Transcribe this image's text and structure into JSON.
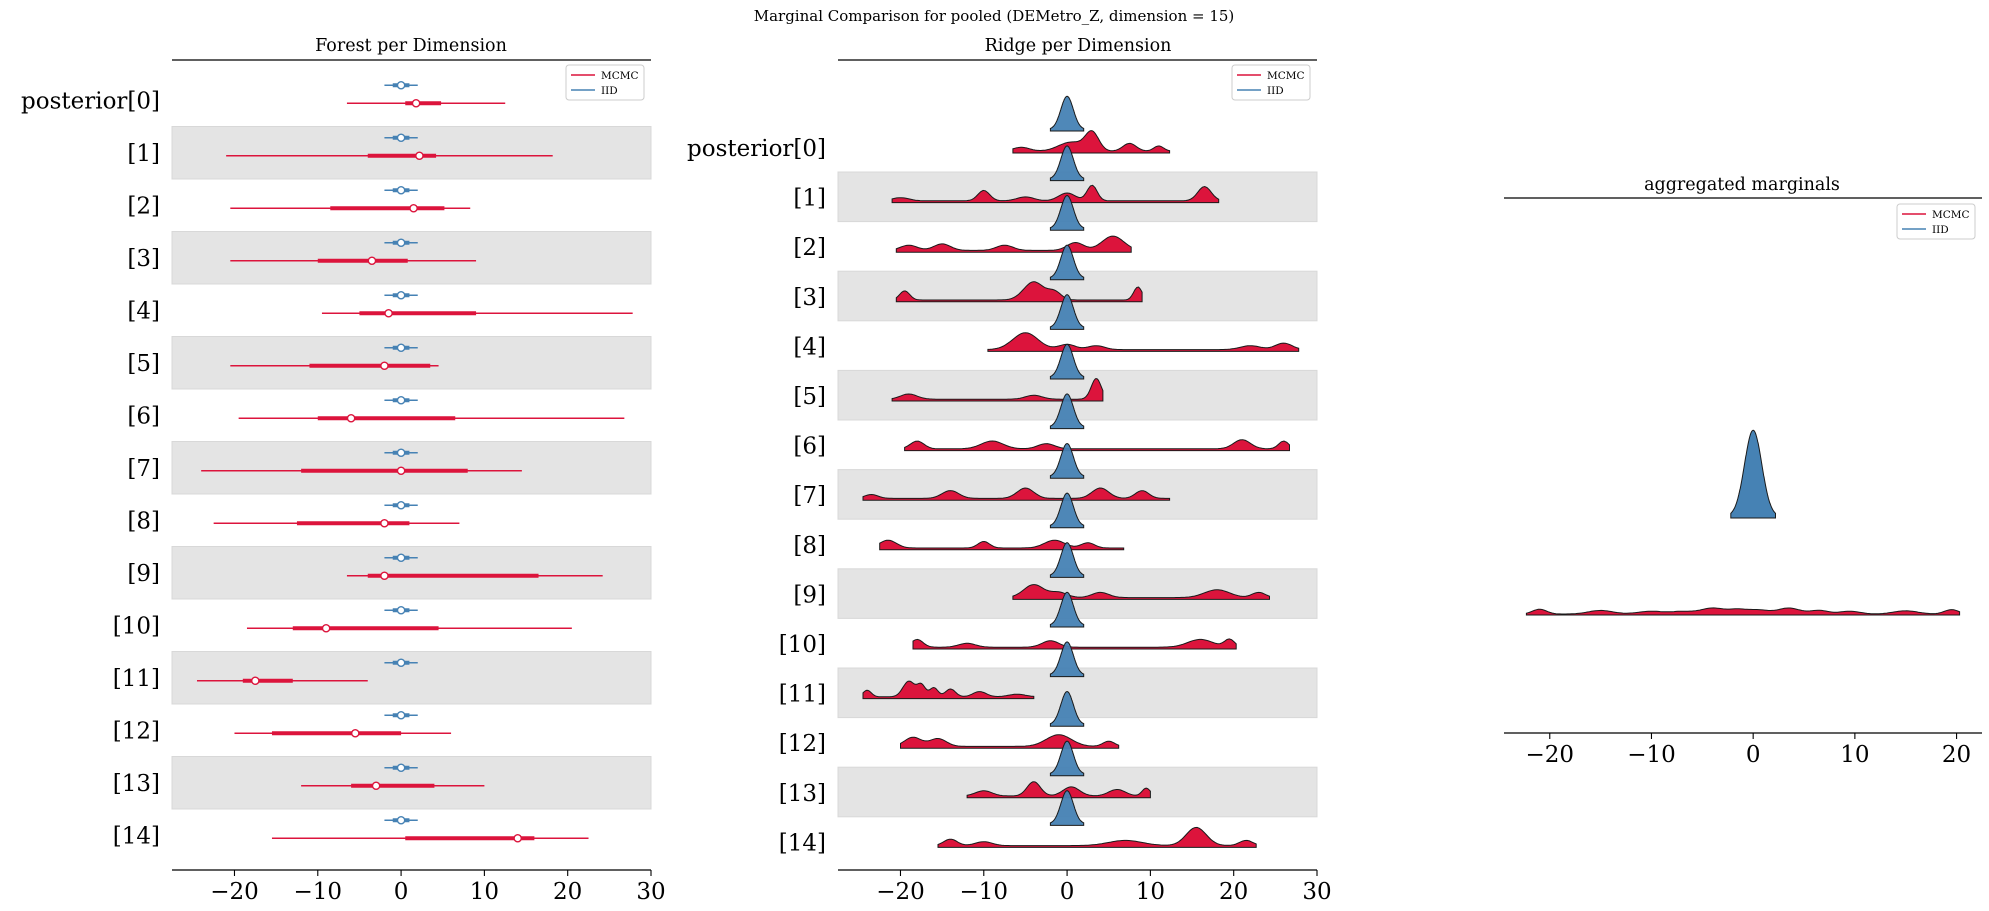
{
  "figure": {
    "suptitle": "Marginal Comparison for pooled (DEMetro_Z, dimension = 15)"
  },
  "colors": {
    "mcmc": "#dc143c",
    "iid": "#4682b4",
    "band": "#e4e4e4",
    "axis": "#000000"
  },
  "legend": {
    "mcmc_label": "MCMC",
    "iid_label": "IID"
  },
  "chart_data": [
    {
      "type": "forest",
      "title": "Forest per Dimension",
      "xlim": [
        -27.5,
        30
      ],
      "xticks": [
        -20,
        -10,
        0,
        10,
        20,
        30
      ],
      "xtick_labels": [
        "−20",
        "−10",
        "0",
        "10",
        "20",
        "30"
      ],
      "labels": [
        "posterior[0]",
        "[1]",
        "[2]",
        "[3]",
        "[4]",
        "[5]",
        "[6]",
        "[7]",
        "[8]",
        "[9]",
        "[10]",
        "[11]",
        "[12]",
        "[13]",
        "[14]"
      ],
      "iid": {
        "median": 0,
        "hdi94": [
          -2,
          2
        ],
        "iqr": [
          -1,
          1
        ]
      },
      "mcmc": [
        {
          "lo": -6.5,
          "q1": 0.5,
          "median": 1.8,
          "q3": 4.8,
          "hi": 12.5
        },
        {
          "lo": -21,
          "q1": -4,
          "median": 2.2,
          "q3": 4.2,
          "hi": 18.2
        },
        {
          "lo": -20.5,
          "q1": -8.5,
          "median": 1.5,
          "q3": 5.2,
          "hi": 8.3
        },
        {
          "lo": -20.5,
          "q1": -10,
          "median": -3.5,
          "q3": 0.8,
          "hi": 9
        },
        {
          "lo": -9.5,
          "q1": -5,
          "median": -1.5,
          "q3": 9,
          "hi": 27.8
        },
        {
          "lo": -20.5,
          "q1": -11,
          "median": -2,
          "q3": 3.5,
          "hi": 4.5
        },
        {
          "lo": -19.5,
          "q1": -10,
          "median": -6,
          "q3": 6.5,
          "hi": 26.8
        },
        {
          "lo": -24,
          "q1": -12,
          "median": 0,
          "q3": 8,
          "hi": 14.5
        },
        {
          "lo": -22.5,
          "q1": -12.5,
          "median": -2,
          "q3": 1,
          "hi": 7
        },
        {
          "lo": -6.5,
          "q1": -4,
          "median": -2,
          "q3": 16.5,
          "hi": 24.2
        },
        {
          "lo": -18.5,
          "q1": -13,
          "median": -9,
          "q3": 4.5,
          "hi": 20.5
        },
        {
          "lo": -24.5,
          "q1": -19,
          "median": -17.5,
          "q3": -13,
          "hi": -4
        },
        {
          "lo": -20,
          "q1": -15.5,
          "median": -5.5,
          "q3": 0,
          "hi": 6
        },
        {
          "lo": -12,
          "q1": -6,
          "median": -3,
          "q3": 4,
          "hi": 10
        },
        {
          "lo": -15.5,
          "q1": 0.5,
          "median": 14,
          "q3": 16,
          "hi": 22.5
        }
      ]
    },
    {
      "type": "ridge",
      "title": "Ridge per Dimension",
      "xlim": [
        -27.5,
        30
      ],
      "xticks": [
        -20,
        -10,
        0,
        10,
        20,
        30
      ],
      "xtick_labels": [
        "−20",
        "−10",
        "0",
        "10",
        "20",
        "30"
      ],
      "labels": [
        "posterior[0]",
        "[1]",
        "[2]",
        "[3]",
        "[4]",
        "[5]",
        "[6]",
        "[7]",
        "[8]",
        "[9]",
        "[10]",
        "[11]",
        "[12]",
        "[13]",
        "[14]"
      ],
      "iid_range": [
        -2,
        2
      ],
      "mcmc_densities": [
        {
          "lo": -6.5,
          "hi": 12.3,
          "peaks": [
            [
              -5.5,
              0.15,
              1
            ],
            [
              0.5,
              0.35,
              1.5
            ],
            [
              3,
              0.7,
              0.8
            ],
            [
              7.5,
              0.3,
              0.8
            ],
            [
              11,
              0.2,
              0.6
            ]
          ]
        },
        {
          "lo": -21,
          "hi": 18.2,
          "peaks": [
            [
              -20,
              0.12,
              1
            ],
            [
              -10,
              0.4,
              0.7
            ],
            [
              -5,
              0.15,
              1
            ],
            [
              0,
              0.3,
              1
            ],
            [
              3,
              0.6,
              0.6
            ],
            [
              16.5,
              0.55,
              0.8
            ]
          ]
        },
        {
          "lo": -20.5,
          "hi": 7.7,
          "peaks": [
            [
              -19,
              0.2,
              1
            ],
            [
              -15,
              0.25,
              1
            ],
            [
              -7.5,
              0.2,
              1
            ],
            [
              1,
              0.3,
              1
            ],
            [
              5.5,
              0.55,
              1.3
            ]
          ]
        },
        {
          "lo": -20.5,
          "hi": 9,
          "peaks": [
            [
              -19.5,
              0.35,
              0.6
            ],
            [
              -4,
              0.7,
              1.2
            ],
            [
              -1.5,
              0.3,
              0.8
            ],
            [
              8.5,
              0.5,
              0.5
            ]
          ]
        },
        {
          "lo": -9.5,
          "hi": 27.8,
          "peaks": [
            [
              -5,
              0.65,
              1.5
            ],
            [
              0,
              0.2,
              1
            ],
            [
              3.5,
              0.15,
              1
            ],
            [
              22,
              0.15,
              1.2
            ],
            [
              26,
              0.25,
              1
            ]
          ]
        },
        {
          "lo": -21,
          "hi": 4.3,
          "peaks": [
            [
              -19,
              0.2,
              1
            ],
            [
              -4,
              0.15,
              1
            ],
            [
              3.5,
              0.8,
              0.6
            ]
          ]
        },
        {
          "lo": -19.5,
          "hi": 26.7,
          "peaks": [
            [
              -18,
              0.3,
              0.8
            ],
            [
              -9,
              0.3,
              1.3
            ],
            [
              -2.5,
              0.2,
              1
            ],
            [
              21,
              0.35,
              1
            ],
            [
              26,
              0.3,
              0.6
            ]
          ]
        },
        {
          "lo": -24.5,
          "hi": 12.3,
          "peaks": [
            [
              -23.5,
              0.15,
              0.8
            ],
            [
              -14,
              0.3,
              1
            ],
            [
              -5,
              0.4,
              1
            ],
            [
              4,
              0.4,
              1
            ],
            [
              9,
              0.3,
              0.8
            ]
          ]
        },
        {
          "lo": -22.5,
          "hi": 6.8,
          "peaks": [
            [
              -21.5,
              0.3,
              1
            ],
            [
              -10,
              0.25,
              0.7
            ],
            [
              -1.5,
              0.3,
              1.2
            ],
            [
              2.5,
              0.2,
              0.8
            ]
          ]
        },
        {
          "lo": -6.5,
          "hi": 24.3,
          "peaks": [
            [
              -4,
              0.5,
              1.2
            ],
            [
              -1,
              0.2,
              1
            ],
            [
              4,
              0.2,
              1
            ],
            [
              18,
              0.3,
              1.5
            ],
            [
              23,
              0.2,
              0.8
            ]
          ]
        },
        {
          "lo": -18.5,
          "hi": 20.3,
          "peaks": [
            [
              -18,
              0.3,
              0.7
            ],
            [
              -12,
              0.15,
              1
            ],
            [
              -2,
              0.25,
              1
            ],
            [
              16,
              0.3,
              1.5
            ],
            [
              19.5,
              0.3,
              0.6
            ]
          ]
        },
        {
          "lo": -24.5,
          "hi": -4,
          "peaks": [
            [
              -24,
              0.25,
              0.5
            ],
            [
              -19,
              0.6,
              0.7
            ],
            [
              -17.5,
              0.45,
              0.5
            ],
            [
              -16,
              0.35,
              0.5
            ],
            [
              -14,
              0.3,
              0.6
            ],
            [
              -10.5,
              0.2,
              0.8
            ],
            [
              -6,
              0.1,
              1
            ]
          ]
        },
        {
          "lo": -20,
          "hi": 6.2,
          "peaks": [
            [
              -18.5,
              0.35,
              1
            ],
            [
              -15.5,
              0.3,
              1
            ],
            [
              -1,
              0.45,
              1.5
            ],
            [
              5,
              0.2,
              0.7
            ]
          ]
        },
        {
          "lo": -12,
          "hi": 10,
          "peaks": [
            [
              -10,
              0.2,
              1
            ],
            [
              -4,
              0.55,
              0.8
            ],
            [
              0.5,
              0.35,
              1
            ],
            [
              6,
              0.25,
              1
            ],
            [
              9.5,
              0.3,
              0.5
            ]
          ]
        },
        {
          "lo": -15.5,
          "hi": 22.7,
          "peaks": [
            [
              -14,
              0.25,
              0.8
            ],
            [
              -10,
              0.15,
              1
            ],
            [
              7,
              0.2,
              2
            ],
            [
              15.5,
              0.7,
              1.2
            ],
            [
              21.5,
              0.2,
              0.8
            ]
          ]
        }
      ]
    },
    {
      "type": "density",
      "title": "aggregated marginals",
      "xlim": [
        -24.5,
        22.5
      ],
      "xticks": [
        -20,
        -10,
        0,
        10,
        20
      ],
      "xtick_labels": [
        "−20",
        "−10",
        "0",
        "10",
        "20"
      ],
      "iid_range": [
        -2.2,
        2.2
      ],
      "mcmc_range": [
        -22.3,
        20.3
      ],
      "mcmc_peaks": [
        [
          -21,
          0.6,
          0.7
        ],
        [
          -15,
          0.45,
          1.2
        ],
        [
          -10,
          0.35,
          1.3
        ],
        [
          -7,
          0.3,
          1
        ],
        [
          -4,
          0.75,
          1.2
        ],
        [
          -1.5,
          0.5,
          0.9
        ],
        [
          0.5,
          0.5,
          1
        ],
        [
          3.5,
          0.75,
          1.1
        ],
        [
          6.5,
          0.45,
          0.9
        ],
        [
          9.5,
          0.35,
          1
        ],
        [
          15,
          0.4,
          1.2
        ],
        [
          19.5,
          0.55,
          0.7
        ]
      ]
    }
  ]
}
